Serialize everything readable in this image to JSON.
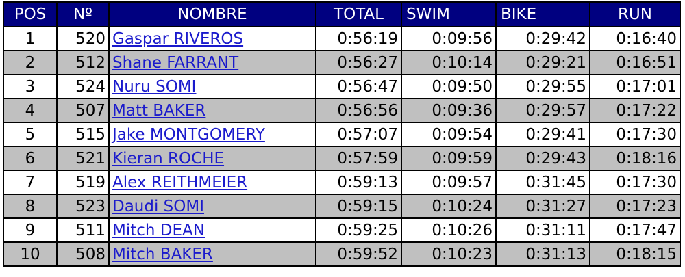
{
  "table": {
    "header": [
      "POS",
      "Nº",
      "NOMBRE",
      "TOTAL",
      "SWIM",
      "BIKE",
      "RUN"
    ],
    "rows": [
      [
        "1",
        "520",
        "Gaspar RIVEROS",
        "0:56:19",
        "0:09:56",
        "0:29:42",
        "0:16:40"
      ],
      [
        "2",
        "512",
        "Shane FARRANT",
        "0:56:27",
        "0:10:14",
        "0:29:21",
        "0:16:51"
      ],
      [
        "3",
        "524",
        "Nuru SOMI",
        "0:56:47",
        "0:09:50",
        "0:29:55",
        "0:17:01"
      ],
      [
        "4",
        "507",
        "Matt BAKER",
        "0:56:56",
        "0:09:36",
        "0:29:57",
        "0:17:22"
      ],
      [
        "5",
        "515",
        "Jake MONTGOMERY",
        "0:57:07",
        "0:09:54",
        "0:29:41",
        "0:17:30"
      ],
      [
        "6",
        "521",
        "Kieran ROCHE",
        "0:57:59",
        "0:09:59",
        "0:29:43",
        "0:18:16"
      ],
      [
        "7",
        "519",
        "Alex REITHMEIER",
        "0:59:13",
        "0:09:57",
        "0:31:45",
        "0:17:30"
      ],
      [
        "8",
        "523",
        "Daudi SOMI",
        "0:59:15",
        "0:10:24",
        "0:31:27",
        "0:17:23"
      ],
      [
        "9",
        "511",
        "Mitch DEAN",
        "0:59:25",
        "0:10:26",
        "0:31:11",
        "0:17:47"
      ],
      [
        "10",
        "508",
        "Mitch BAKER",
        "0:59:52",
        "0:10:23",
        "0:31:13",
        "0:18:15"
      ]
    ]
  }
}
